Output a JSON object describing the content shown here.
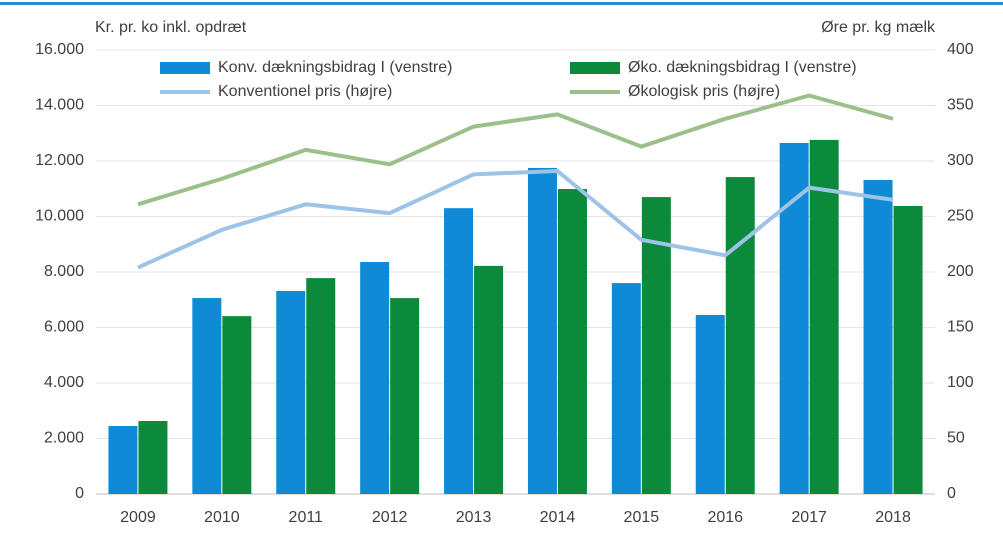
{
  "chart_data": {
    "type": "bar",
    "y_label": "Kr. pr. ko inkl. opdræt",
    "y2_label": "Øre pr. kg mælk",
    "categories": [
      "2009",
      "2010",
      "2011",
      "2012",
      "2013",
      "2014",
      "2015",
      "2016",
      "2017",
      "2018"
    ],
    "series": [
      {
        "name": "Konv. dækningsbidrag I (venstre)",
        "type": "bar",
        "color": "#0f8bd6",
        "values": [
          2450,
          7060,
          7315,
          8360,
          10300,
          11750,
          7600,
          6450,
          12650,
          11315
        ]
      },
      {
        "name": "Øko. dækningsbidrag I (venstre)",
        "type": "bar",
        "color": "#0c8a3b",
        "values": [
          2630,
          6410,
          7780,
          7060,
          8220,
          10990,
          10700,
          11420,
          12760,
          10380
        ]
      },
      {
        "name": "Konventionel pris (højre)",
        "type": "line",
        "axis": "y2",
        "color": "#9dc3e6",
        "values": [
          204,
          238,
          261,
          253,
          288,
          291,
          229,
          215,
          276,
          265
        ]
      },
      {
        "name": "Økologisk pris (højre)",
        "type": "line",
        "axis": "y2",
        "color": "#9cbf8c",
        "values": [
          261,
          284,
          310,
          297,
          331,
          342,
          313,
          338,
          359,
          338
        ]
      }
    ],
    "ylim": [
      0,
      16000
    ],
    "yticks": [
      0,
      {
        "value": 2000,
        "label": "2.000"
      },
      {
        "value": 4000,
        "label": "4.000"
      },
      {
        "value": 6000,
        "label": "6.000"
      },
      {
        "value": 8000,
        "label": "8.000"
      },
      {
        "value": 10000,
        "label": "10.000"
      },
      {
        "value": 12000,
        "label": "12.000"
      },
      {
        "value": 14000,
        "label": "14.000"
      },
      {
        "value": 16000,
        "label": "16.000"
      }
    ],
    "y2lim": [
      0,
      400
    ],
    "y2ticks": [
      0,
      50,
      100,
      150,
      200,
      250,
      300,
      350,
      400
    ],
    "grid": true
  }
}
